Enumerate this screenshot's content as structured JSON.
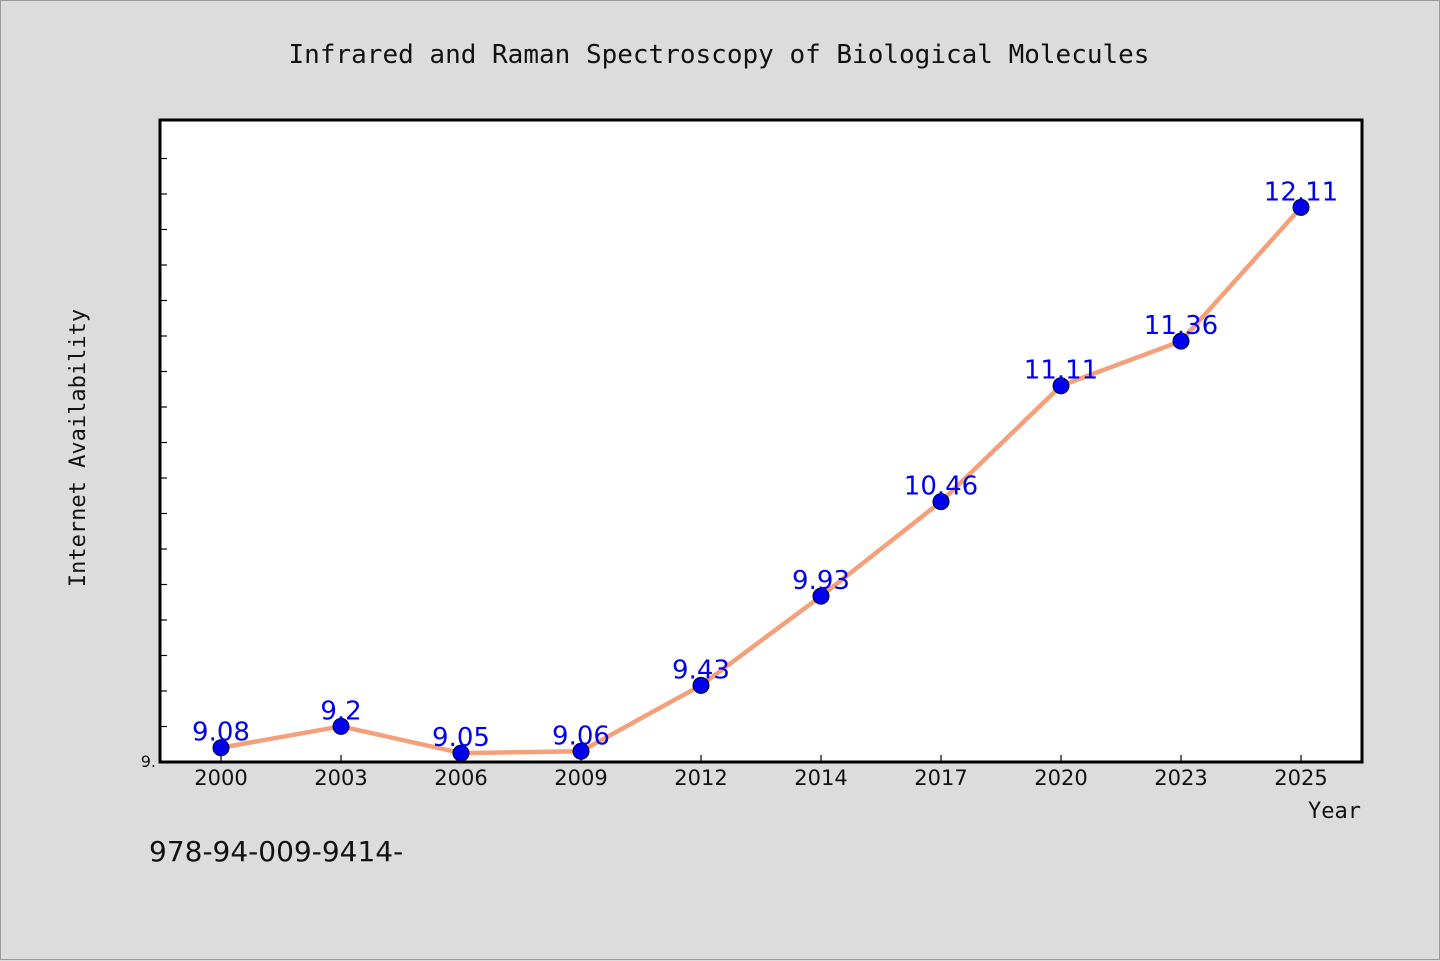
{
  "chart_data": {
    "type": "line",
    "title": "Infrared and Raman Spectroscopy of Biological Molecules",
    "xlabel": "Year",
    "ylabel": "Internet Availability",
    "categories": [
      "2000",
      "2003",
      "2006",
      "2009",
      "2012",
      "2014",
      "2017",
      "2020",
      "2023",
      "2025"
    ],
    "series": [
      {
        "values": [
          9.08,
          9.2,
          9.05,
          9.06,
          9.43,
          9.93,
          10.46,
          11.11,
          11.36,
          12.11
        ],
        "data_labels": [
          "9.08",
          "9.2",
          "9.05",
          "9.06",
          "9.43",
          "9.93",
          "10.46",
          "11.11",
          "11.36",
          "12.11"
        ]
      }
    ],
    "ylim": [
      9.0,
      12.6
    ],
    "y_tick_labels": [
      "9."
    ],
    "grid": false,
    "legend": "none",
    "colors": {
      "line": "#f4a07a",
      "marker": "#0000ee",
      "label": "#0000ee",
      "background": "#dcdcdc",
      "plot_bg": "#ffffff"
    }
  },
  "footer": {
    "isbn": "978-94-009-9414-"
  }
}
